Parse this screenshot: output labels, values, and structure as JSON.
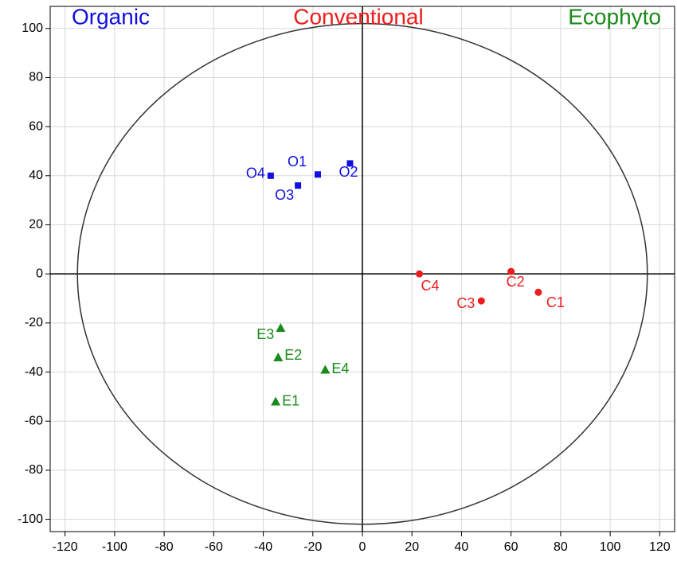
{
  "chart_data": {
    "type": "scatter",
    "xlim": [
      -126,
      126
    ],
    "ylim": [
      -105,
      109
    ],
    "xticks": [
      -120,
      -100,
      -80,
      -60,
      -40,
      -20,
      0,
      20,
      40,
      60,
      80,
      100,
      120
    ],
    "yticks": [
      -100,
      -80,
      -60,
      -40,
      -20,
      0,
      20,
      40,
      60,
      80,
      100
    ],
    "grid": true,
    "ellipse": {
      "rx": 115,
      "ry": 102
    },
    "series": [
      {
        "name": "Organic",
        "color": "#1010e0",
        "marker": "square",
        "labels": [
          "O1",
          "O2",
          "O3",
          "O4"
        ],
        "x": [
          -18,
          -5,
          -26,
          -37
        ],
        "y": [
          40.5,
          45,
          36,
          40
        ]
      },
      {
        "name": "Conventional",
        "color": "#ee1c1c",
        "marker": "circle",
        "labels": [
          "C1",
          "C2",
          "C3",
          "C4"
        ],
        "x": [
          71,
          60,
          48,
          23
        ],
        "y": [
          -7.5,
          1,
          -11,
          0
        ]
      },
      {
        "name": "Ecophyto",
        "color": "#1a8a1a",
        "marker": "triangle",
        "labels": [
          "E1",
          "E2",
          "E3",
          "E4"
        ],
        "x": [
          -35,
          -34,
          -33,
          -15
        ],
        "y": [
          -52,
          -34,
          -22,
          -39
        ]
      }
    ]
  }
}
